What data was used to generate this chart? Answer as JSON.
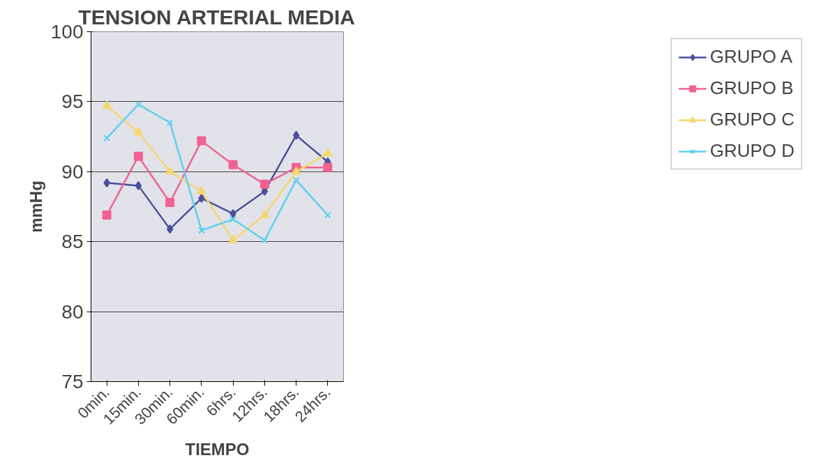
{
  "chart_data": {
    "type": "line",
    "title": "TENSION ARTERIAL MEDIA",
    "xlabel": "TIEMPO",
    "ylabel": "mmHg",
    "categories": [
      "0min.",
      "15min.",
      "30min.",
      "60min.",
      "6hrs.",
      "12hrs.",
      "18hrs.",
      "24hrs."
    ],
    "series": [
      {
        "name": "GRUPO A",
        "color": "#4a4f9a",
        "marker": "diamond",
        "values": [
          89.2,
          89.0,
          85.9,
          88.1,
          87.0,
          88.6,
          92.6,
          90.7
        ]
      },
      {
        "name": "GRUPO B",
        "color": "#f06292",
        "marker": "square",
        "values": [
          86.9,
          91.1,
          87.8,
          92.2,
          90.5,
          89.1,
          90.3,
          90.3
        ]
      },
      {
        "name": "GRUPO C",
        "color": "#f5d76e",
        "marker": "triangle",
        "values": [
          94.7,
          92.8,
          90.0,
          88.6,
          85.1,
          86.9,
          90.0,
          91.3
        ]
      },
      {
        "name": "GRUPO D",
        "color": "#5ed0f0",
        "marker": "cross",
        "values": [
          92.4,
          94.8,
          93.5,
          85.8,
          86.6,
          85.1,
          89.4,
          86.9
        ]
      }
    ],
    "ylim": [
      75,
      100
    ],
    "yticks": [
      75,
      80,
      85,
      90,
      95,
      100
    ],
    "grid": "y",
    "legend": "right"
  }
}
